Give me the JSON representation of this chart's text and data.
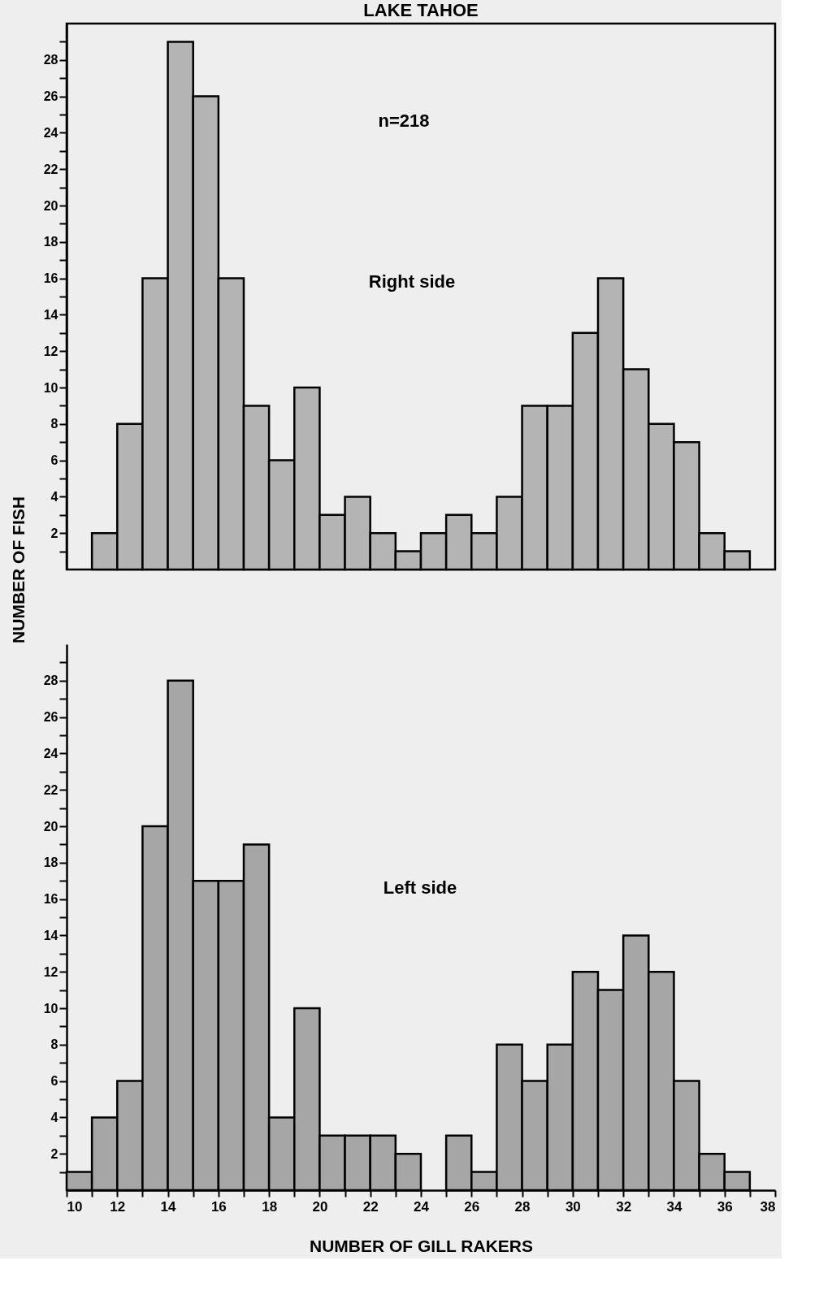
{
  "chart_data": [
    {
      "type": "histogram",
      "title": "LAKE TAHOE",
      "ylabel": "NUMBER OF FISH",
      "bins": [
        11,
        12,
        13,
        14,
        15,
        16,
        17,
        18,
        19,
        20,
        21,
        22,
        23,
        24,
        25,
        26,
        27,
        28,
        29,
        30,
        31,
        32,
        33,
        34,
        35,
        36,
        37
      ],
      "values": [
        2,
        8,
        16,
        29,
        26,
        16,
        9,
        6,
        10,
        3,
        4,
        2,
        1,
        2,
        3,
        2,
        4,
        9,
        9,
        13,
        16,
        11,
        8,
        7,
        2,
        1
      ],
      "color": "#b4b4b4",
      "xlim": [
        10,
        38
      ],
      "ylim": [
        0,
        30
      ],
      "yticks": [
        {
          "value": 1,
          "label": null
        },
        2,
        {
          "value": 3,
          "label": null
        },
        4,
        {
          "value": 5,
          "label": null
        },
        6,
        {
          "value": 7,
          "label": null
        },
        8,
        {
          "value": 9,
          "label": null
        },
        10,
        {
          "value": 11,
          "label": null
        },
        12,
        {
          "value": 13,
          "label": null
        },
        14,
        {
          "value": 15,
          "label": null
        },
        16,
        {
          "value": 17,
          "label": null
        },
        18,
        {
          "value": 19,
          "label": null
        },
        20,
        {
          "value": 21,
          "label": null
        },
        22,
        {
          "value": 23,
          "label": null
        },
        24,
        {
          "value": 25,
          "label": null
        },
        26,
        {
          "value": 27,
          "label": null
        },
        28,
        {
          "value": 29,
          "label": null
        }
      ],
      "tick_labels": "y",
      "annotations": [
        "n=218",
        "Right side"
      ]
    },
    {
      "type": "histogram",
      "xlabel": "NUMBER OF GILL RAKERS",
      "bins": [
        10,
        11,
        12,
        13,
        14,
        15,
        16,
        17,
        18,
        19,
        20,
        21,
        22,
        23,
        24,
        25,
        26,
        27,
        28,
        29,
        30,
        31,
        32,
        33,
        34,
        35,
        36,
        37
      ],
      "values": [
        1,
        4,
        6,
        20,
        28,
        17,
        17,
        19,
        4,
        10,
        3,
        3,
        3,
        2,
        0,
        3,
        1,
        8,
        6,
        8,
        12,
        11,
        14,
        12,
        6,
        2,
        1
      ],
      "color": "#a6a6a6",
      "xlim": [
        10,
        38
      ],
      "ylim": [
        0,
        30
      ],
      "xticks": [
        10,
        {
          "value": 11,
          "label": null
        },
        12,
        {
          "value": 13,
          "label": null
        },
        14,
        {
          "value": 15,
          "label": null
        },
        16,
        {
          "value": 17,
          "label": null
        },
        18,
        {
          "value": 19,
          "label": null
        },
        20,
        {
          "value": 21,
          "label": null
        },
        22,
        {
          "value": 23,
          "label": null
        },
        24,
        {
          "value": 25,
          "label": null
        },
        26,
        {
          "value": 27,
          "label": null
        },
        28,
        {
          "value": 29,
          "label": null
        },
        30,
        {
          "value": 31,
          "label": null
        },
        32,
        {
          "value": 33,
          "label": null
        },
        34,
        {
          "value": 35,
          "label": null
        },
        36,
        {
          "value": 37,
          "label": null
        },
        38
      ],
      "yticks": [
        {
          "value": 1,
          "label": null
        },
        2,
        {
          "value": 3,
          "label": null
        },
        4,
        {
          "value": 5,
          "label": null
        },
        6,
        {
          "value": 7,
          "label": null
        },
        8,
        {
          "value": 9,
          "label": null
        },
        10,
        {
          "value": 11,
          "label": null
        },
        12,
        {
          "value": 13,
          "label": null
        },
        14,
        {
          "value": 15,
          "label": null
        },
        16,
        {
          "value": 17,
          "label": null
        },
        18,
        {
          "value": 19,
          "label": null
        },
        20,
        {
          "value": 21,
          "label": null
        },
        22,
        {
          "value": 23,
          "label": null
        },
        24,
        {
          "value": 25,
          "label": null
        },
        26,
        {
          "value": 27,
          "label": null
        },
        28,
        {
          "value": 29,
          "label": null
        }
      ],
      "annotations": [
        "Left side"
      ]
    }
  ]
}
